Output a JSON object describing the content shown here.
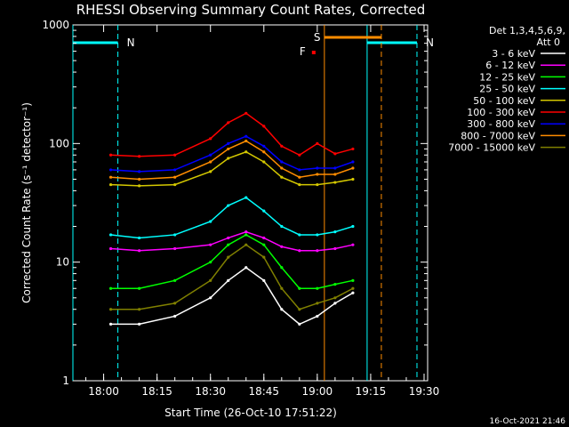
{
  "chart_data": {
    "type": "line",
    "title": "RHESSI Observing Summary Count Rates, Corrected",
    "xlabel": "Start Time (26-Oct-10 17:51:22)",
    "ylabel": "Corrected Count Rate (s⁻¹ detector⁻¹)",
    "yscale": "log",
    "ylim": [
      1,
      1000
    ],
    "xlim": [
      "17:51:22",
      "19:31:00"
    ],
    "xticks": [
      "18:00",
      "18:15",
      "18:30",
      "18:45",
      "19:00",
      "19:15",
      "19:30"
    ],
    "yticks": [
      "1",
      "10",
      "100",
      "1000"
    ],
    "legend_header": [
      "Det 1,3,4,5,6,9,",
      "Att 0"
    ],
    "legend_position": "right",
    "x": [
      "18:02",
      "18:10",
      "18:20",
      "18:30",
      "18:35",
      "18:40",
      "18:45",
      "18:50",
      "18:55",
      "19:00",
      "19:05",
      "19:10"
    ],
    "series": [
      {
        "name": "3 - 6 keV",
        "color": "#ffffff",
        "values": [
          3,
          3,
          3.5,
          5,
          7,
          9,
          7,
          4,
          3,
          3.5,
          4.5,
          5.5
        ]
      },
      {
        "name": "6 - 12 keV",
        "color": "#ff00ff",
        "values": [
          13,
          12.5,
          13,
          14,
          16,
          18,
          16,
          13.5,
          12.5,
          12.5,
          13,
          14
        ]
      },
      {
        "name": "12 - 25 keV",
        "color": "#00ff00",
        "values": [
          6,
          6,
          7,
          10,
          14,
          17,
          14,
          9,
          6,
          6,
          6.5,
          7
        ]
      },
      {
        "name": "25 - 50 keV",
        "color": "#00ffff",
        "values": [
          17,
          16,
          17,
          22,
          30,
          35,
          27,
          20,
          17,
          17,
          18,
          20
        ]
      },
      {
        "name": "50 - 100 keV",
        "color": "#d4c800",
        "values": [
          45,
          44,
          45,
          58,
          75,
          85,
          70,
          52,
          45,
          45,
          47,
          50
        ]
      },
      {
        "name": "100 - 300 keV",
        "color": "#ff0000",
        "values": [
          80,
          78,
          80,
          110,
          150,
          180,
          140,
          95,
          80,
          100,
          82,
          90
        ]
      },
      {
        "name": "300 - 800 keV",
        "color": "#0000ff",
        "values": [
          60,
          58,
          60,
          80,
          100,
          115,
          95,
          70,
          60,
          62,
          62,
          70
        ]
      },
      {
        "name": "800 - 7000 keV",
        "color": "#ff8c00",
        "values": [
          52,
          50,
          52,
          70,
          90,
          105,
          85,
          62,
          52,
          55,
          55,
          62
        ]
      },
      {
        "name": "7000 - 15000 keV",
        "color": "#808000",
        "values": [
          4,
          4,
          4.5,
          7,
          11,
          14,
          11,
          6,
          4,
          4.5,
          5,
          6
        ]
      }
    ],
    "annotations": [
      {
        "label": "N",
        "color": "#00ffff",
        "kind": "night",
        "start": "19:14",
        "end": "19:28"
      },
      {
        "label": "N",
        "color": "#00ffff",
        "kind": "night",
        "start": "17:51:22",
        "end": "18:04"
      },
      {
        "label": "S",
        "color": "#ff8c00",
        "kind": "saa",
        "start": "19:02",
        "end": "19:18"
      },
      {
        "label": "F",
        "color": "#ff0000",
        "kind": "flare",
        "at": "18:59"
      }
    ],
    "grid": false
  },
  "footer": {
    "timestamp": "16-Oct-2021 21:46"
  }
}
